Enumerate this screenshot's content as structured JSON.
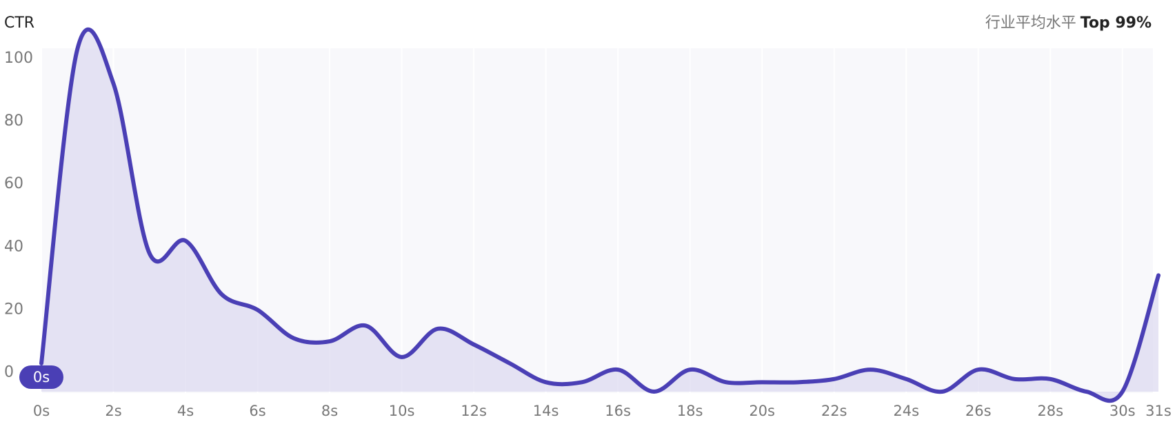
{
  "chart_data": {
    "type": "line",
    "y_label": "CTR",
    "benchmark_label": "行业平均水平",
    "benchmark_value": "Top 99%",
    "cursor_label": "0s",
    "x": [
      0,
      1,
      2,
      3,
      4,
      5,
      6,
      7,
      8,
      9,
      10,
      11,
      12,
      13,
      14,
      15,
      16,
      17,
      18,
      19,
      20,
      21,
      22,
      23,
      24,
      25,
      26,
      27,
      28,
      29,
      30,
      31
    ],
    "series": [
      {
        "color": "#4a3fb5",
        "values": [
          3,
          103,
          92,
          38,
          42,
          25,
          20,
          11,
          10,
          15,
          5,
          14,
          9,
          3,
          -3,
          -3,
          1,
          -6,
          1,
          -3,
          -3,
          -3,
          -2,
          1,
          -2,
          -6,
          1,
          -2,
          -2,
          -6,
          -6,
          31
        ]
      }
    ],
    "area_color": "#dcd8f0",
    "xlim": [
      0,
      31
    ],
    "ylim": [
      -6,
      105
    ],
    "yticks": [
      0,
      20,
      40,
      60,
      80,
      100
    ],
    "xticks": [
      {
        "value": 0,
        "label": "0s"
      },
      {
        "value": 2,
        "label": "2s"
      },
      {
        "value": 4,
        "label": "4s"
      },
      {
        "value": 6,
        "label": "6s"
      },
      {
        "value": 8,
        "label": "8s"
      },
      {
        "value": 10,
        "label": "10s"
      },
      {
        "value": 12,
        "label": "12s"
      },
      {
        "value": 14,
        "label": "14s"
      },
      {
        "value": 16,
        "label": "16s"
      },
      {
        "value": 18,
        "label": "18s"
      },
      {
        "value": 20,
        "label": "20s"
      },
      {
        "value": 22,
        "label": "22s"
      },
      {
        "value": 24,
        "label": "24s"
      },
      {
        "value": 26,
        "label": "26s"
      },
      {
        "value": 28,
        "label": "28s"
      },
      {
        "value": 30,
        "label": "30s"
      },
      {
        "value": 31,
        "label": "31s"
      }
    ],
    "grid": true
  }
}
